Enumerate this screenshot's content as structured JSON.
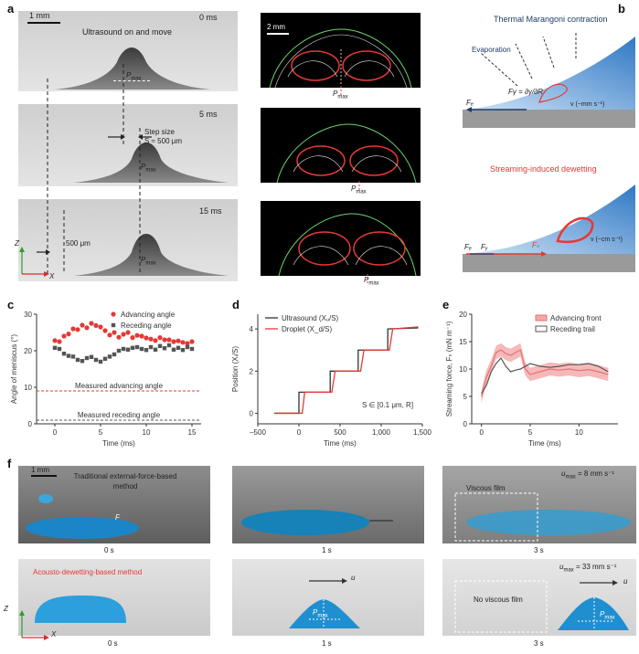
{
  "panels": {
    "a": "a",
    "b": "b",
    "c": "c",
    "d": "d",
    "e": "e",
    "f": "f"
  },
  "a": {
    "scale_bar": "1 mm",
    "caption_top": "Ultrasound on and move",
    "times": [
      "0 ms",
      "5 ms",
      "15 ms"
    ],
    "step_size_line1": "Step size",
    "step_size_line2": "S ≈ 500 μm",
    "dist_500": "500 μm",
    "pmax": "P",
    "pmax_sub": "max",
    "axis_z": "Z",
    "axis_x": "X",
    "right_scale_bar": "2 mm"
  },
  "b": {
    "title1": "Thermal Marangoni contraction",
    "evaporation": "Evaporation",
    "f_gamma_eq": "Fγ = ∂γ/∂R",
    "velocity1": "v (~mm s⁻¹)",
    "f_e": "Fₑ",
    "title2": "Streaming-induced dewetting",
    "velocity2": "v (~cm s⁻¹)",
    "f_gamma": "Fᵧ",
    "f_s": "Fₛ"
  },
  "colors": {
    "red": "#e53935",
    "blue": "#2f78c4",
    "dark": "#333333"
  },
  "chart_data": [
    {
      "id": "c",
      "type": "scatter",
      "xlabel": "Time (ms)",
      "ylabel": "Angle of meniscus (°)",
      "xlim": [
        -2,
        16
      ],
      "ylim": [
        0,
        30
      ],
      "xticks": [
        0,
        5,
        10,
        15
      ],
      "yticks": [
        0,
        10,
        20,
        30
      ],
      "legend_position": "top-right",
      "series": [
        {
          "name": "Advancing angle",
          "color": "#e53935",
          "x": [
            0,
            0.5,
            1,
            1.5,
            2,
            2.5,
            3,
            3.5,
            4,
            4.5,
            5,
            5.5,
            6,
            6.5,
            7,
            7.5,
            8,
            8.5,
            9,
            9.5,
            10,
            10.5,
            11,
            11.5,
            12,
            12.5,
            13,
            13.5,
            14,
            14.5,
            15
          ],
          "y": [
            22.8,
            22.5,
            24,
            24.6,
            26,
            25.8,
            27,
            26.3,
            27.5,
            26.9,
            26.5,
            25.5,
            24.3,
            25,
            23.7,
            24.5,
            25,
            23.6,
            24.2,
            24,
            23.5,
            23.2,
            22.8,
            23.6,
            23,
            23,
            22.5,
            22.7,
            22.3,
            22,
            22.5
          ]
        },
        {
          "name": "Receding angle",
          "color": "#555555",
          "x": [
            0,
            0.5,
            1,
            1.5,
            2,
            2.5,
            3,
            3.5,
            4,
            4.5,
            5,
            5.5,
            6,
            6.5,
            7,
            7.5,
            8,
            8.5,
            9,
            9.5,
            10,
            10.5,
            11,
            11.5,
            12,
            12.5,
            13,
            13.5,
            14,
            14.5,
            15
          ],
          "y": [
            20.8,
            20.5,
            19.2,
            18.6,
            18.4,
            17.5,
            17.2,
            18,
            18.3,
            17.5,
            17,
            17.8,
            18.4,
            19,
            20,
            20.5,
            20.3,
            20.8,
            21,
            20.5,
            20.2,
            21,
            20.3,
            21.3,
            20.7,
            21.5,
            20.3,
            20.8,
            20.2,
            21,
            20.5
          ]
        }
      ],
      "reference_lines": [
        {
          "label": "Measured advancing angle",
          "y": 9,
          "color": "#e53935"
        },
        {
          "label": "Measured receding angle",
          "y": 1,
          "color": "#555555"
        }
      ]
    },
    {
      "id": "d",
      "type": "line",
      "xlabel": "Time (ms)",
      "ylabel": "Position (Xᵢ/S)",
      "xlim": [
        -500,
        1500
      ],
      "ylim": [
        -0.5,
        4.7
      ],
      "xticks": [
        -500,
        0,
        500,
        1000,
        1500
      ],
      "xtick_labels": [
        "–500",
        "0",
        "500",
        "1,000",
        "1,500"
      ],
      "yticks": [
        0,
        2,
        4
      ],
      "legend_position": "top-left",
      "annotation": "S ∈ [0.1 μm, R]",
      "series": [
        {
          "name": "Ultrasound (Xᵤ/S)",
          "color": "#333333",
          "x": [
            -300,
            0,
            0,
            380,
            380,
            720,
            720,
            1080,
            1080,
            1450
          ],
          "y": [
            0,
            0,
            1,
            1,
            2,
            2,
            3,
            3,
            4,
            4.05
          ]
        },
        {
          "name": "Droplet (X_d/S)",
          "color": "#e53935",
          "x": [
            -300,
            40,
            70,
            400,
            440,
            750,
            790,
            1100,
            1140,
            1450
          ],
          "y": [
            0,
            0,
            1,
            1,
            2,
            2,
            3,
            3,
            4,
            4.1
          ]
        }
      ]
    },
    {
      "id": "e",
      "type": "line",
      "xlabel": "Time (ms)",
      "ylabel": "Streaming force, Fₛ (mN m⁻¹)",
      "xlim": [
        -1,
        14
      ],
      "ylim": [
        0,
        20
      ],
      "xticks": [
        0,
        5,
        10
      ],
      "yticks": [
        0,
        5,
        10,
        15,
        20
      ],
      "legend_position": "top-right",
      "series": [
        {
          "name": "Advancing front",
          "color": "#e57373",
          "x": [
            0,
            0.5,
            1,
            1.5,
            2,
            2.5,
            3,
            3.5,
            4,
            4.5,
            5,
            6,
            7,
            8,
            9,
            10,
            11,
            12,
            13
          ],
          "y": [
            5,
            8.5,
            10.5,
            13,
            13.5,
            12.8,
            12.5,
            13,
            13.5,
            10,
            9,
            9.5,
            10,
            9.8,
            10,
            9.7,
            9.9,
            9.5,
            9
          ]
        },
        {
          "name": "Receding trail",
          "color": "#555555",
          "x": [
            0,
            0.5,
            1,
            1.5,
            2,
            2.5,
            3,
            3.5,
            4,
            4.5,
            5,
            6,
            7,
            8,
            9,
            10,
            11,
            12,
            13
          ],
          "y": [
            5.5,
            7,
            9.5,
            11,
            12,
            10.5,
            9.5,
            9.8,
            10,
            10.5,
            11,
            10.5,
            10.3,
            10.5,
            10.8,
            10.8,
            11,
            10.5,
            9.5
          ]
        }
      ]
    }
  ],
  "f": {
    "scale_bar": "1 mm",
    "method1_line1": "Traditional external-force-based",
    "method1_line2": "method",
    "force": "F",
    "times_row1": [
      "0 s",
      "1 s",
      "3 s"
    ],
    "viscous_film": "Viscous film",
    "umax1": "u",
    "umax1_sub": "max",
    "umax1_val": " = 8 mm s⁻¹",
    "method2": "Acousto-dewetting-based method",
    "times_row2": [
      "0 s",
      "1 s",
      "3 s"
    ],
    "no_viscous_film": "No viscous film",
    "umax2_val": " = 33 mm s⁻¹",
    "u": "u",
    "axis_z": "Z",
    "axis_x": "X"
  }
}
